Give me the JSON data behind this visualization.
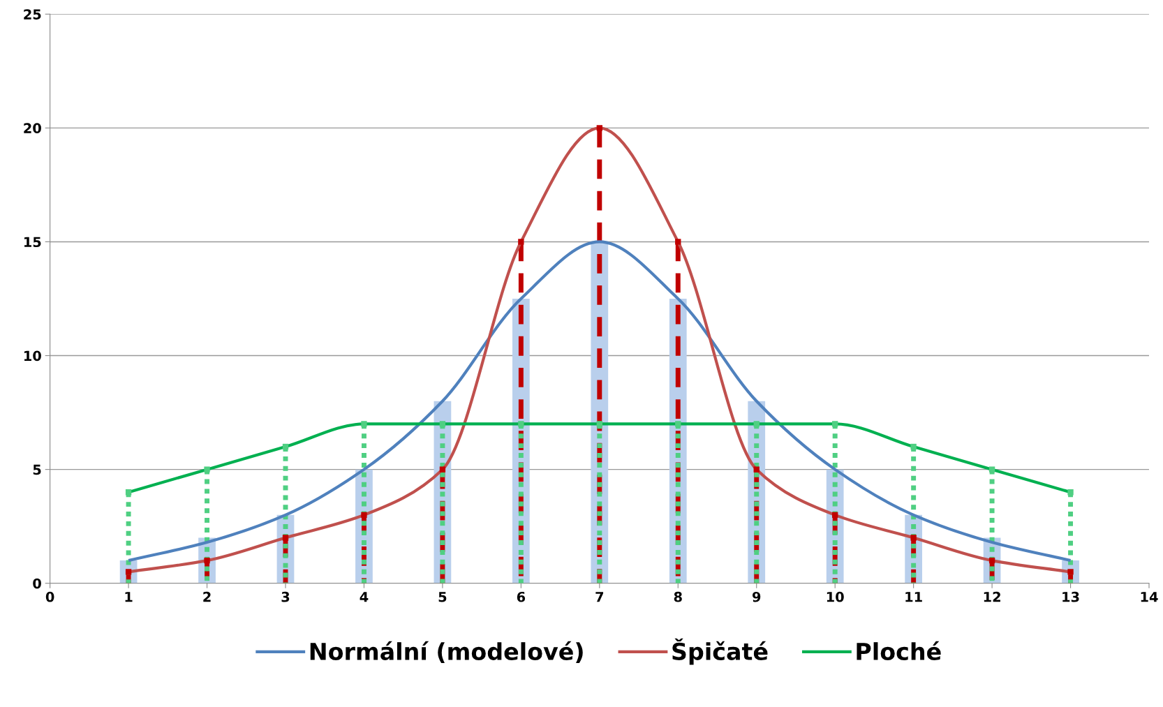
{
  "chart_data": {
    "type": "line",
    "x": [
      1,
      2,
      3,
      4,
      5,
      6,
      7,
      8,
      9,
      10,
      11,
      12,
      13
    ],
    "series": [
      {
        "type": "bar",
        "color": "#b9cfec",
        "values": [
          1,
          2,
          3,
          5,
          8,
          12.5,
          15,
          12.5,
          8,
          5,
          3,
          2,
          1
        ]
      },
      {
        "type": "lollipop",
        "color": "#c00000",
        "line_style": "dashed",
        "marker": "square",
        "values": [
          0.5,
          1,
          2,
          3,
          5,
          15,
          20,
          15,
          5,
          3,
          2,
          1,
          0.5
        ]
      },
      {
        "type": "lollipop",
        "color": "#4fcf82",
        "line_style": "dotted",
        "marker": "square",
        "values": [
          4,
          5,
          6,
          7,
          7,
          7,
          7,
          7,
          7,
          7,
          6,
          5,
          4
        ]
      },
      {
        "name": "Normální (modelové)",
        "color": "#4f81bd",
        "line_style": "solid",
        "values": [
          1,
          1.8,
          3,
          5,
          8,
          12.5,
          15,
          12.5,
          8,
          5,
          3,
          1.8,
          1
        ]
      },
      {
        "name": "Špičaté",
        "color": "#c0504d",
        "line_style": "solid",
        "values": [
          0.5,
          1,
          2,
          3,
          5,
          15,
          20,
          15,
          5,
          3,
          2,
          1,
          0.5
        ]
      },
      {
        "name": "Ploché",
        "color": "#00b050",
        "line_style": "solid",
        "values": [
          4,
          5,
          6,
          7,
          7,
          7,
          7,
          7,
          7,
          7,
          6,
          5,
          4
        ]
      }
    ],
    "xlim": [
      0,
      14
    ],
    "xticks": [
      0,
      1,
      2,
      3,
      4,
      5,
      6,
      7,
      8,
      9,
      10,
      11,
      12,
      13,
      14
    ],
    "ylim": [
      0,
      25
    ],
    "yticks": [
      0,
      5,
      10,
      15,
      20,
      25
    ],
    "grid": "y",
    "legend": "bottom",
    "marker": "none"
  }
}
